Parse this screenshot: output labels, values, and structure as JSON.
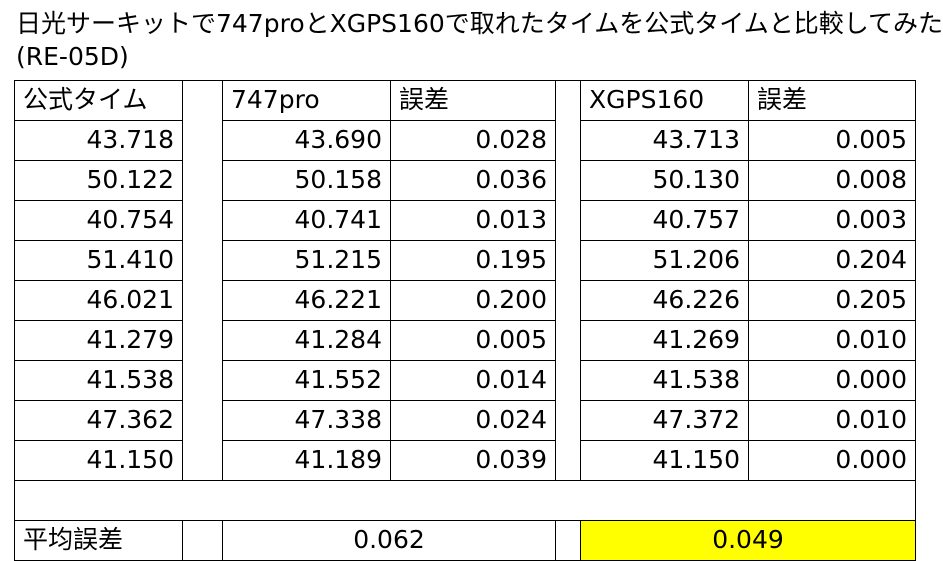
{
  "title": {
    "lines": [
      "日光サーキットで747proとXGPS160で取れたタイムを公式タイムと比較してみた",
      "(RE-05D)"
    ]
  },
  "table": {
    "header": [
      "公式タイム",
      "747pro",
      "誤差",
      "XGPS160",
      "誤差"
    ],
    "rows": [
      [
        "43.718",
        "43.690",
        "0.028",
        "43.713",
        "0.005"
      ],
      [
        "50.122",
        "50.158",
        "0.036",
        "50.130",
        "0.008"
      ],
      [
        "40.754",
        "40.741",
        "0.013",
        "40.757",
        "0.003"
      ],
      [
        "51.410",
        "51.215",
        "0.195",
        "51.206",
        "0.204"
      ],
      [
        "46.021",
        "46.221",
        "0.200",
        "46.226",
        "0.205"
      ],
      [
        "41.279",
        "41.284",
        "0.005",
        "41.269",
        "0.010"
      ],
      [
        "41.538",
        "41.552",
        "0.014",
        "41.538",
        "0.000"
      ],
      [
        "47.362",
        "47.338",
        "0.024",
        "47.372",
        "0.010"
      ],
      [
        "41.150",
        "41.189",
        "0.039",
        "41.150",
        "0.000"
      ]
    ],
    "summary": {
      "label": "平均誤差",
      "pro": "0.062",
      "xgps": "0.049"
    }
  }
}
